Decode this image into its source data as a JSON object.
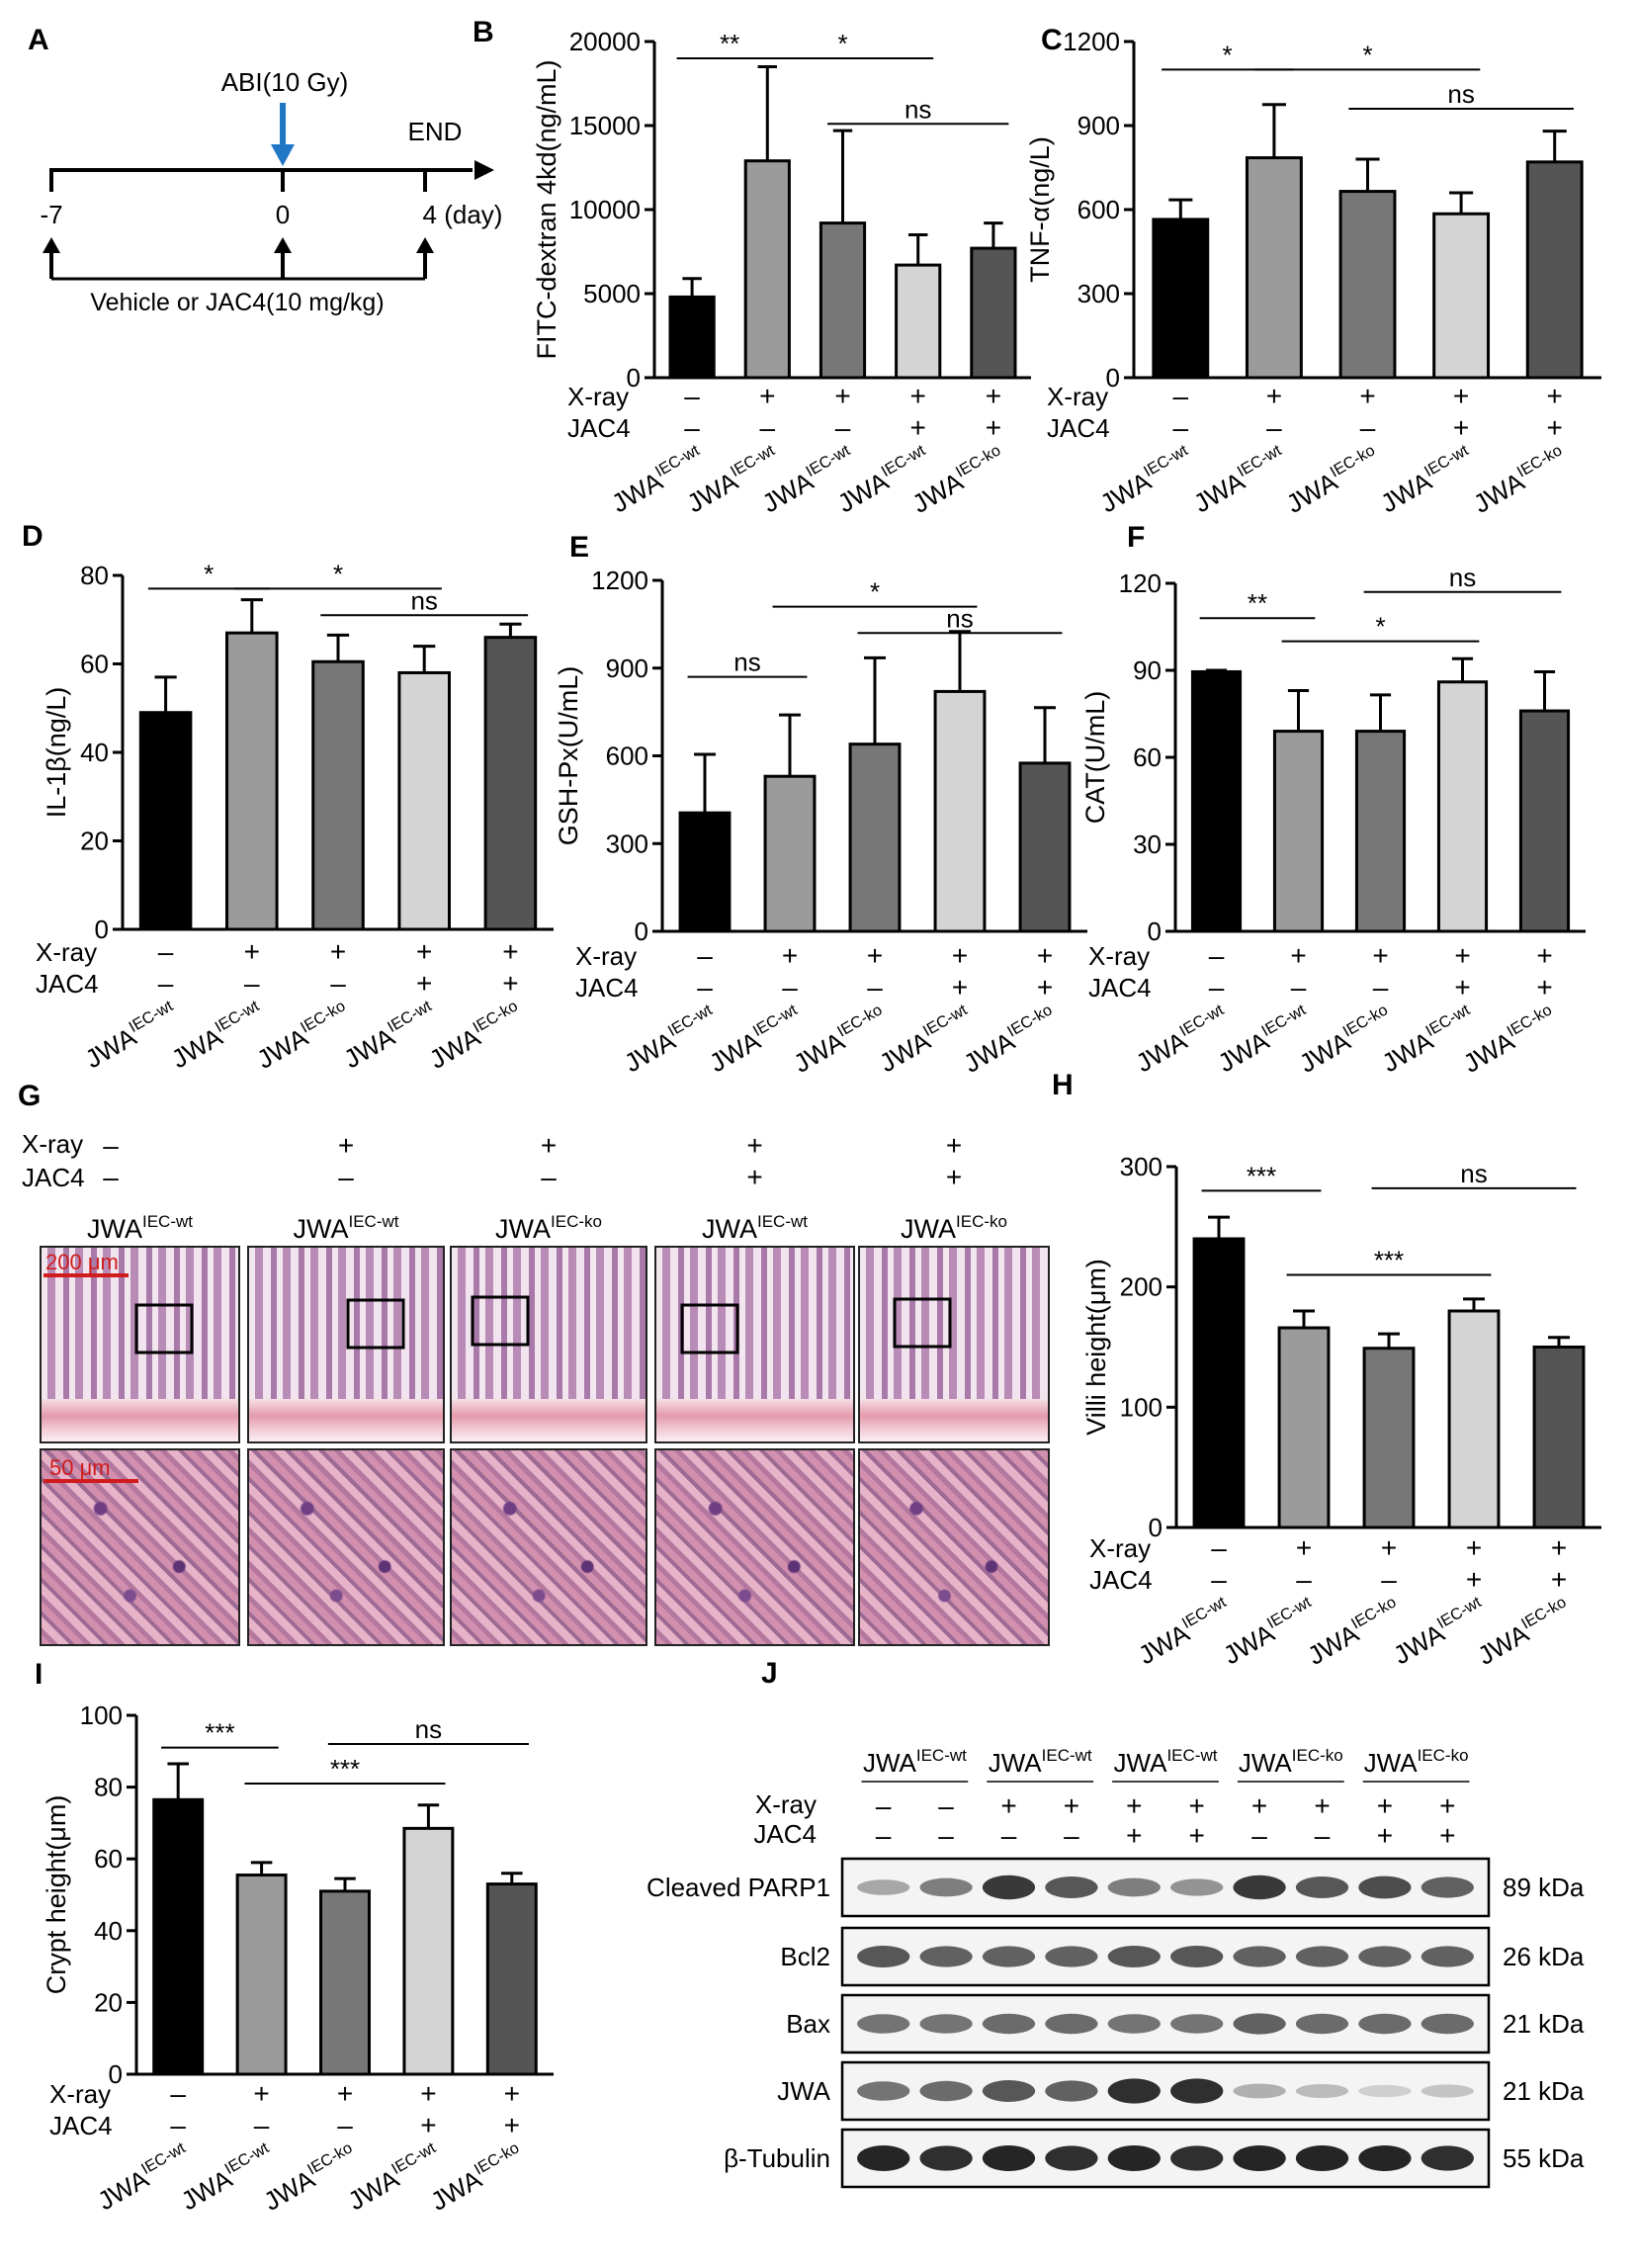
{
  "panel_labels": [
    "A",
    "B",
    "C",
    "D",
    "E",
    "F",
    "G",
    "H",
    "I",
    "J"
  ],
  "panel_a": {
    "irradiation_label": "ABI(10 Gy)",
    "end_label": "END",
    "timepoints": [
      "-7",
      "0",
      "4 (day)"
    ],
    "treatment_label": "Vehicle or JAC4(10 mg/kg)",
    "arrow_color": "#1f77c6"
  },
  "row_labels": {
    "xray": "X-ray",
    "jac4": "JAC4"
  },
  "conditions": {
    "xray": [
      "–",
      "+",
      "+",
      "+",
      "+"
    ],
    "jac4": [
      "–",
      "–",
      "–",
      "+",
      "+"
    ],
    "genotype_base": [
      "JWA",
      "JWA",
      "JWA",
      "JWA",
      "JWA"
    ],
    "genotype_sup": [
      "IEC-wt",
      "IEC-wt",
      "IEC-ko",
      "IEC-wt",
      "IEC-ko"
    ],
    "genotype_sup_b": [
      "IEC-wt",
      "IEC-wt",
      "IEC-wt",
      "IEC-wt",
      "IEC-ko"
    ]
  },
  "bar_colors": [
    "#000000",
    "#9b9b9b",
    "#777777",
    "#d4d4d4",
    "#555555"
  ],
  "chart_data": [
    {
      "panel": "B",
      "type": "bar",
      "ylabel": "FITC-dextran 4kd(ng/mL)",
      "ylim": [
        0,
        20000
      ],
      "yticks": [
        "0",
        "5000",
        "10000",
        "15000",
        "20000"
      ],
      "values": [
        4800,
        12900,
        9200,
        6700,
        7700
      ],
      "errors": [
        1100,
        5600,
        5500,
        1800,
        1500
      ],
      "genotype_set": "genotype_sup_b",
      "significance": [
        {
          "from": 0,
          "to": 1,
          "label": "**",
          "y": 19000
        },
        {
          "from": 1,
          "to": 3,
          "label": "*",
          "y": 19000
        },
        {
          "from": 2,
          "to": 4,
          "label": "ns",
          "y": 15100
        }
      ]
    },
    {
      "panel": "C",
      "type": "bar",
      "ylabel": "TNF-α(ng/L)",
      "ylim": [
        0,
        1200
      ],
      "yticks": [
        "0",
        "300",
        "600",
        "900",
        "1200"
      ],
      "values": [
        565,
        785,
        665,
        585,
        770
      ],
      "errors": [
        70,
        190,
        115,
        75,
        110
      ],
      "genotype_set": "genotype_sup",
      "significance": [
        {
          "from": 0,
          "to": 1,
          "label": "*",
          "y": 1100
        },
        {
          "from": 1,
          "to": 3,
          "label": "*",
          "y": 1100
        },
        {
          "from": 2,
          "to": 4,
          "label": "ns",
          "y": 960
        }
      ]
    },
    {
      "panel": "D",
      "type": "bar",
      "ylabel": "IL-1β(ng/L)",
      "ylim": [
        0,
        80
      ],
      "yticks": [
        "0",
        "20",
        "40",
        "60",
        "80"
      ],
      "values": [
        49,
        67,
        60.5,
        58,
        66
      ],
      "errors": [
        8,
        7.5,
        6,
        6,
        3
      ],
      "genotype_set": "genotype_sup",
      "significance": [
        {
          "from": 0,
          "to": 1,
          "label": "*",
          "y": 77
        },
        {
          "from": 1,
          "to": 3,
          "label": "*",
          "y": 77
        },
        {
          "from": 2,
          "to": 4,
          "label": "ns",
          "y": 71
        }
      ]
    },
    {
      "panel": "E",
      "type": "bar",
      "ylabel": "GSH-Px(U/mL)",
      "ylim": [
        0,
        1200
      ],
      "yticks": [
        "0",
        "300",
        "600",
        "900",
        "1200"
      ],
      "values": [
        405,
        530,
        640,
        820,
        575
      ],
      "errors": [
        200,
        210,
        295,
        205,
        190
      ],
      "genotype_set": "genotype_sup",
      "significance": [
        {
          "from": 0,
          "to": 1,
          "label": "ns",
          "y": 870
        },
        {
          "from": 1,
          "to": 3,
          "label": "*",
          "y": 1110
        },
        {
          "from": 2,
          "to": 4,
          "label": "ns",
          "y": 1020
        }
      ]
    },
    {
      "panel": "F",
      "type": "bar",
      "ylabel": "CAT(U/mL)",
      "ylim": [
        0,
        120
      ],
      "yticks": [
        "0",
        "30",
        "60",
        "90",
        "120"
      ],
      "values": [
        89.5,
        69,
        69,
        86,
        76
      ],
      "errors": [
        0.5,
        14,
        12.5,
        8,
        13.5
      ],
      "genotype_set": "genotype_sup",
      "significance": [
        {
          "from": 0,
          "to": 1,
          "label": "**",
          "y": 108
        },
        {
          "from": 1,
          "to": 3,
          "label": "*",
          "y": 100
        },
        {
          "from": 2,
          "to": 4,
          "label": "ns",
          "y": 117
        }
      ]
    },
    {
      "panel": "H",
      "type": "bar",
      "ylabel": "Villi height(μm)",
      "ylim": [
        0,
        300
      ],
      "yticks": [
        "0",
        "100",
        "200",
        "300"
      ],
      "values": [
        240,
        166,
        149,
        180,
        150
      ],
      "errors": [
        18,
        14,
        12,
        10,
        8
      ],
      "genotype_set": "genotype_sup",
      "significance": [
        {
          "from": 0,
          "to": 1,
          "label": "***",
          "y": 280
        },
        {
          "from": 1,
          "to": 3,
          "label": "***",
          "y": 210
        },
        {
          "from": 2,
          "to": 4,
          "label": "ns",
          "y": 282
        }
      ]
    },
    {
      "panel": "I",
      "type": "bar",
      "ylabel": "Crypt height(μm)",
      "ylim": [
        0,
        100
      ],
      "yticks": [
        "0",
        "20",
        "40",
        "60",
        "80",
        "100"
      ],
      "values": [
        76.5,
        55.5,
        51,
        68.5,
        53
      ],
      "errors": [
        10,
        3.5,
        3.5,
        6.5,
        3
      ],
      "genotype_set": "genotype_sup",
      "significance": [
        {
          "from": 0,
          "to": 1,
          "label": "***",
          "y": 91
        },
        {
          "from": 1,
          "to": 3,
          "label": "***",
          "y": 81
        },
        {
          "from": 2,
          "to": 4,
          "label": "ns",
          "y": 92
        }
      ]
    }
  ],
  "panel_g": {
    "xray": [
      "–",
      "+",
      "+",
      "+",
      "+"
    ],
    "jac4": [
      "–",
      "–",
      "–",
      "+",
      "+"
    ],
    "genotype_sup": [
      "IEC-wt",
      "IEC-wt",
      "IEC-ko",
      "IEC-wt",
      "IEC-ko"
    ],
    "scale_upper": "200 μm",
    "scale_lower": "50 μm",
    "scale_color": "#d01c1c"
  },
  "panel_j": {
    "group_headers": [
      {
        "base": "JWA",
        "sup": "IEC-wt"
      },
      {
        "base": "JWA",
        "sup": "IEC-wt"
      },
      {
        "base": "JWA",
        "sup": "IEC-wt"
      },
      {
        "base": "JWA",
        "sup": "IEC-ko"
      },
      {
        "base": "JWA",
        "sup": "IEC-ko"
      }
    ],
    "xray": [
      "–",
      "–",
      "+",
      "+",
      "+",
      "+",
      "+",
      "+",
      "+",
      "+"
    ],
    "jac4": [
      "–",
      "–",
      "–",
      "–",
      "+",
      "+",
      "–",
      "–",
      "+",
      "+"
    ],
    "blots": [
      {
        "name": "Cleaved PARP1",
        "size": "89 kDa",
        "intensity": [
          0.35,
          0.55,
          0.9,
          0.75,
          0.55,
          0.45,
          0.9,
          0.75,
          0.8,
          0.7
        ]
      },
      {
        "name": "Bcl2",
        "size": "26 kDa",
        "intensity": [
          0.75,
          0.7,
          0.7,
          0.7,
          0.75,
          0.75,
          0.7,
          0.7,
          0.7,
          0.7
        ]
      },
      {
        "name": "Bax",
        "size": "21 kDa",
        "intensity": [
          0.6,
          0.6,
          0.65,
          0.65,
          0.6,
          0.6,
          0.7,
          0.65,
          0.65,
          0.65
        ]
      },
      {
        "name": "JWA",
        "size": "21 kDa",
        "intensity": [
          0.6,
          0.65,
          0.75,
          0.7,
          0.95,
          0.95,
          0.3,
          0.25,
          0.15,
          0.2
        ]
      },
      {
        "name": "β-Tubulin",
        "size": "55 kDa",
        "intensity": [
          1.0,
          0.95,
          1.0,
          0.95,
          1.0,
          0.95,
          1.0,
          1.0,
          1.0,
          0.95
        ]
      }
    ]
  }
}
